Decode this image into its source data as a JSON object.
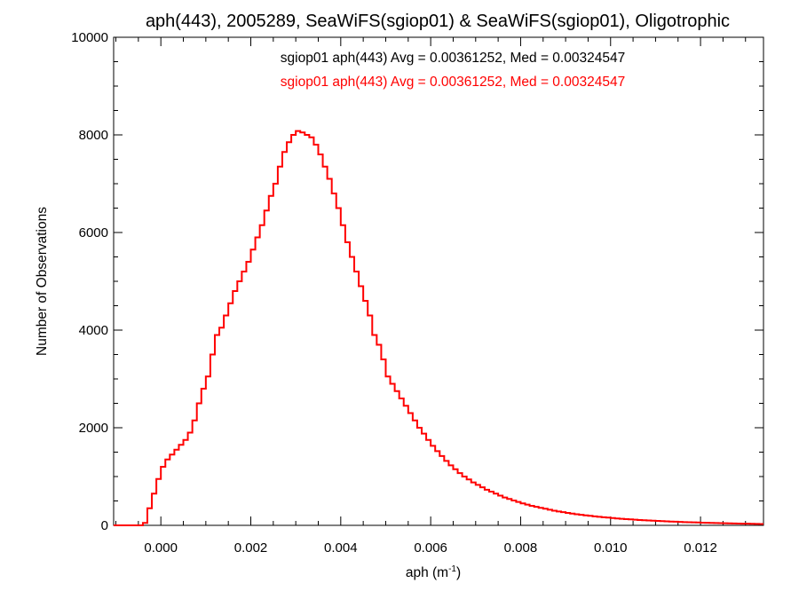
{
  "chart_data": {
    "type": "histogram",
    "title": "aph(443), 2005289, SeaWiFS(sgiop01) & SeaWiFS(sgiop01), Oligotrophic",
    "xlabel": {
      "base": "aph (m",
      "sup": "-1",
      "close": ")"
    },
    "ylabel": "Number of Observations",
    "xlim": [
      -0.00105,
      0.0134
    ],
    "ylim": [
      0,
      10000
    ],
    "xticks": [
      {
        "value": 0.0,
        "label": "0.000"
      },
      {
        "value": 0.002,
        "label": "0.002"
      },
      {
        "value": 0.004,
        "label": "0.004"
      },
      {
        "value": 0.006,
        "label": "0.006"
      },
      {
        "value": 0.008,
        "label": "0.008"
      },
      {
        "value": 0.01,
        "label": "0.010"
      },
      {
        "value": 0.012,
        "label": "0.012"
      }
    ],
    "yticks": [
      {
        "value": 0,
        "label": "0"
      },
      {
        "value": 2000,
        "label": "2000"
      },
      {
        "value": 4000,
        "label": "4000"
      },
      {
        "value": 6000,
        "label": "6000"
      },
      {
        "value": 8000,
        "label": "8000"
      },
      {
        "value": 10000,
        "label": "10000"
      }
    ],
    "annotations": [
      {
        "text": "sgiop01 aph(443) Avg = 0.00361252, Med = 0.00324547",
        "color": "#000000"
      },
      {
        "text": "sgiop01 aph(443) Avg = 0.00361252, Med = 0.00324547",
        "color": "#ff0000"
      }
    ],
    "series": [
      {
        "color": "#ff0000",
        "bin_width": 0.0001,
        "bins": [
          [
            -0.0004,
            50
          ],
          [
            -0.0003,
            350
          ],
          [
            -0.0002,
            650
          ],
          [
            -0.0001,
            950
          ],
          [
            0.0,
            1200
          ],
          [
            0.0001,
            1350
          ],
          [
            0.0002,
            1450
          ],
          [
            0.0003,
            1550
          ],
          [
            0.0004,
            1650
          ],
          [
            0.0005,
            1750
          ],
          [
            0.0006,
            1900
          ],
          [
            0.0007,
            2150
          ],
          [
            0.0008,
            2500
          ],
          [
            0.0009,
            2800
          ],
          [
            0.001,
            3050
          ],
          [
            0.0011,
            3500
          ],
          [
            0.0012,
            3900
          ],
          [
            0.0013,
            4050
          ],
          [
            0.0014,
            4300
          ],
          [
            0.0015,
            4550
          ],
          [
            0.0016,
            4800
          ],
          [
            0.0017,
            5000
          ],
          [
            0.0018,
            5200
          ],
          [
            0.0019,
            5400
          ],
          [
            0.002,
            5650
          ],
          [
            0.0021,
            5900
          ],
          [
            0.0022,
            6150
          ],
          [
            0.0023,
            6450
          ],
          [
            0.0024,
            6750
          ],
          [
            0.0025,
            7000
          ],
          [
            0.0026,
            7350
          ],
          [
            0.0027,
            7650
          ],
          [
            0.0028,
            7850
          ],
          [
            0.0029,
            8000
          ],
          [
            0.003,
            8080
          ],
          [
            0.0031,
            8050
          ],
          [
            0.0032,
            8000
          ],
          [
            0.0033,
            7950
          ],
          [
            0.0034,
            7800
          ],
          [
            0.0035,
            7600
          ],
          [
            0.0036,
            7350
          ],
          [
            0.0037,
            7100
          ],
          [
            0.0038,
            6800
          ],
          [
            0.0039,
            6500
          ],
          [
            0.004,
            6150
          ],
          [
            0.0041,
            5800
          ],
          [
            0.0042,
            5500
          ],
          [
            0.0043,
            5200
          ],
          [
            0.0044,
            4900
          ],
          [
            0.0045,
            4600
          ],
          [
            0.0046,
            4300
          ],
          [
            0.0047,
            3900
          ],
          [
            0.0048,
            3700
          ],
          [
            0.0049,
            3400
          ],
          [
            0.005,
            3050
          ],
          [
            0.0051,
            2900
          ],
          [
            0.0052,
            2750
          ],
          [
            0.0053,
            2600
          ],
          [
            0.0054,
            2450
          ],
          [
            0.0055,
            2300
          ],
          [
            0.0056,
            2150
          ],
          [
            0.0057,
            2000
          ],
          [
            0.0058,
            1880
          ],
          [
            0.0059,
            1750
          ],
          [
            0.006,
            1630
          ],
          [
            0.0061,
            1520
          ],
          [
            0.0062,
            1420
          ],
          [
            0.0063,
            1320
          ],
          [
            0.0064,
            1230
          ],
          [
            0.0065,
            1150
          ],
          [
            0.0066,
            1070
          ],
          [
            0.0067,
            1000
          ],
          [
            0.0068,
            940
          ],
          [
            0.0069,
            880
          ],
          [
            0.007,
            830
          ],
          [
            0.0071,
            780
          ],
          [
            0.0072,
            730
          ],
          [
            0.0073,
            690
          ],
          [
            0.0074,
            650
          ],
          [
            0.0075,
            610
          ],
          [
            0.0076,
            570
          ],
          [
            0.0077,
            540
          ],
          [
            0.0078,
            510
          ],
          [
            0.0079,
            480
          ],
          [
            0.008,
            450
          ],
          [
            0.0081,
            425
          ],
          [
            0.0082,
            400
          ],
          [
            0.0083,
            380
          ],
          [
            0.0084,
            360
          ],
          [
            0.0085,
            340
          ],
          [
            0.0086,
            320
          ],
          [
            0.0087,
            300
          ],
          [
            0.0088,
            285
          ],
          [
            0.0089,
            270
          ],
          [
            0.009,
            255
          ],
          [
            0.0091,
            240
          ],
          [
            0.0092,
            228
          ],
          [
            0.0093,
            216
          ],
          [
            0.0094,
            205
          ],
          [
            0.0095,
            195
          ],
          [
            0.0096,
            185
          ],
          [
            0.0097,
            175
          ],
          [
            0.0098,
            166
          ],
          [
            0.0099,
            158
          ],
          [
            0.01,
            150
          ],
          [
            0.0101,
            142
          ],
          [
            0.0102,
            135
          ],
          [
            0.0103,
            128
          ],
          [
            0.0104,
            122
          ],
          [
            0.0105,
            116
          ],
          [
            0.0106,
            110
          ],
          [
            0.0107,
            105
          ],
          [
            0.0108,
            100
          ],
          [
            0.0109,
            95
          ],
          [
            0.011,
            90
          ],
          [
            0.0111,
            86
          ],
          [
            0.0112,
            82
          ],
          [
            0.0113,
            78
          ],
          [
            0.0114,
            74
          ],
          [
            0.0115,
            70
          ],
          [
            0.0116,
            67
          ],
          [
            0.0117,
            64
          ],
          [
            0.0118,
            61
          ],
          [
            0.0119,
            58
          ],
          [
            0.012,
            55
          ],
          [
            0.0121,
            52
          ],
          [
            0.0122,
            50
          ],
          [
            0.0123,
            48
          ],
          [
            0.0124,
            45
          ],
          [
            0.0125,
            43
          ],
          [
            0.0126,
            41
          ],
          [
            0.0127,
            39
          ],
          [
            0.0128,
            37
          ],
          [
            0.0129,
            35
          ],
          [
            0.013,
            33
          ],
          [
            0.0131,
            31
          ],
          [
            0.0132,
            29
          ],
          [
            0.0133,
            27
          ]
        ]
      }
    ]
  }
}
